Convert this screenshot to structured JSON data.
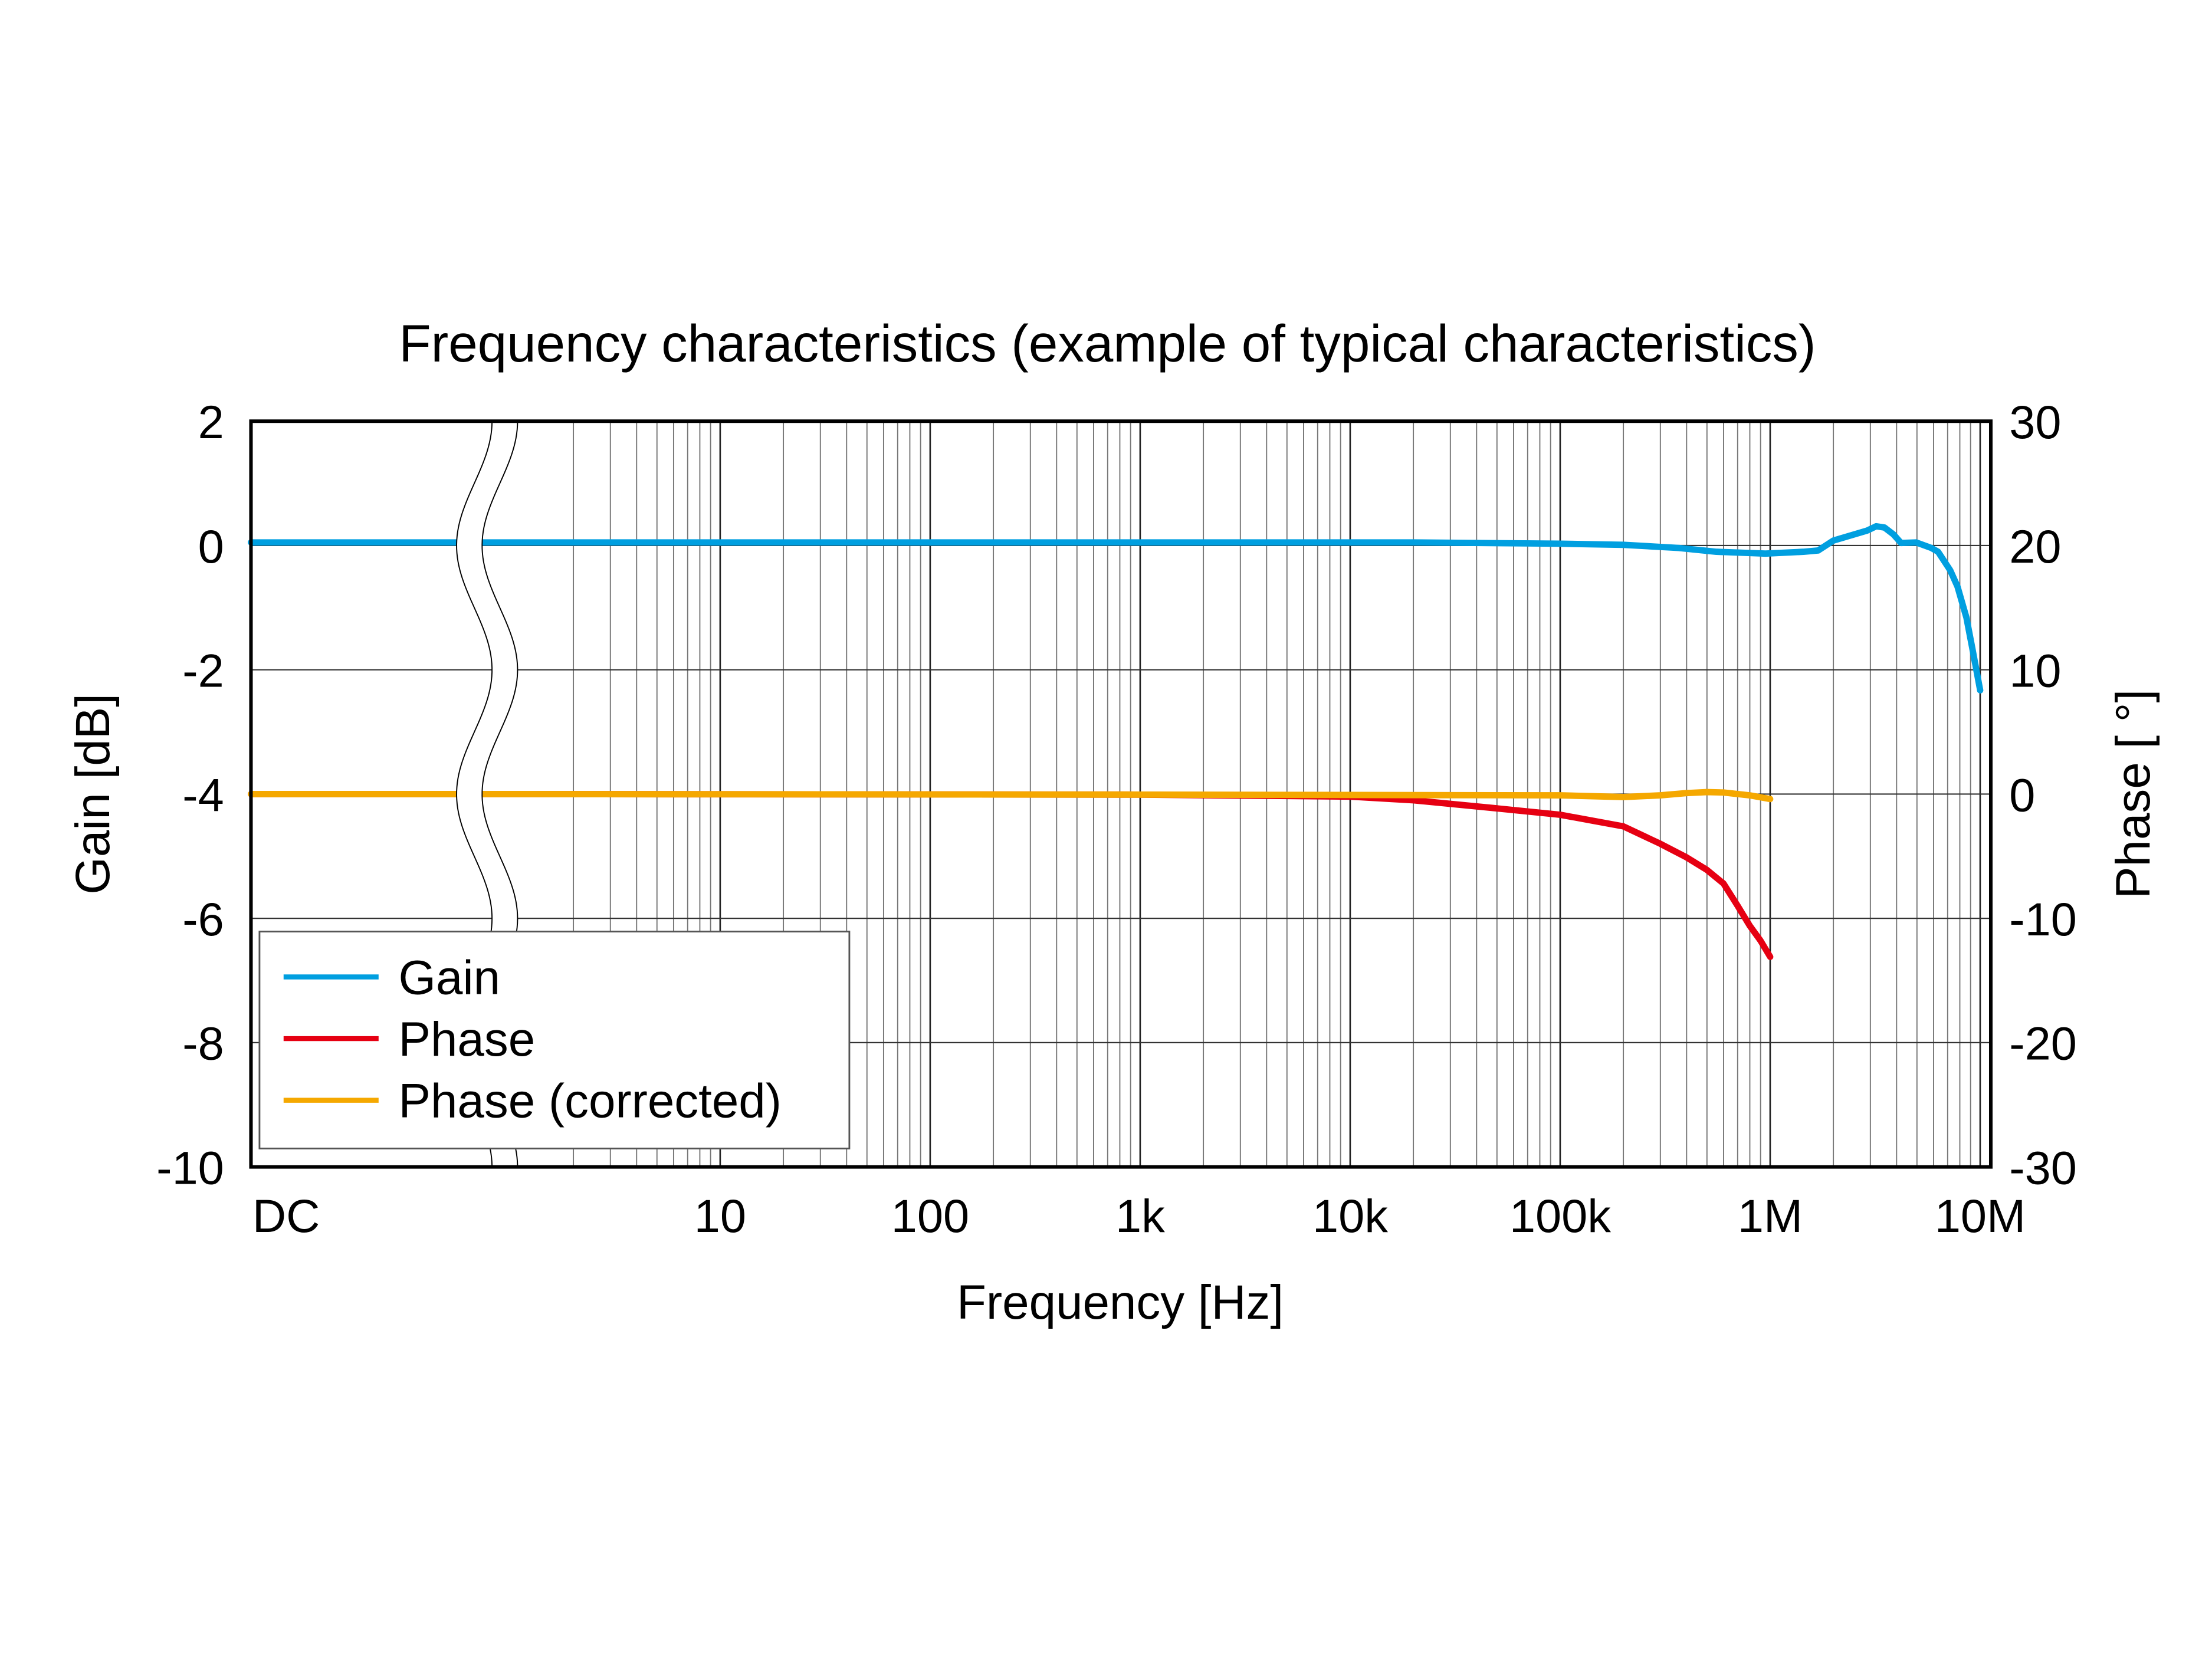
{
  "chart_data": {
    "type": "line",
    "title": "Frequency characteristics (example of typical characteristics)",
    "xlabel": "Frequency [Hz]",
    "ylabel_left": "Gain [dB]",
    "ylabel_right": "Phase [ °]",
    "x_scale": "log (broken axis with DC point at left)",
    "x_ticks": [
      {
        "label": "DC",
        "value": "DC"
      },
      {
        "label": "10",
        "value": 10
      },
      {
        "label": "100",
        "value": 100
      },
      {
        "label": "1k",
        "value": 1000
      },
      {
        "label": "10k",
        "value": 10000
      },
      {
        "label": "100k",
        "value": 100000
      },
      {
        "label": "1M",
        "value": 1000000
      },
      {
        "label": "10M",
        "value": 10000000
      }
    ],
    "ylim_left": [
      -10,
      2
    ],
    "ylim_right": [
      -30,
      30
    ],
    "y_ticks_left": [
      "2",
      "0",
      "-2",
      "-4",
      "-6",
      "-8",
      "-10"
    ],
    "y_ticks_right": [
      "30",
      "20",
      "10",
      "0",
      "-10",
      "-20",
      "-30"
    ],
    "grid": true,
    "legend_position": "bottom-left",
    "series": [
      {
        "name": "Gain",
        "axis": "left",
        "color": "#009fe0",
        "points": [
          [
            "DC",
            0.05
          ],
          [
            1,
            0.05
          ],
          [
            1000,
            0.05
          ],
          [
            20000,
            0.05
          ],
          [
            100000,
            0.03
          ],
          [
            200000,
            0.01
          ],
          [
            367000,
            -0.04
          ],
          [
            555000,
            -0.1
          ],
          [
            950000,
            -0.13
          ],
          [
            1440000,
            -0.1
          ],
          [
            1690000,
            -0.08
          ],
          [
            2000000,
            0.08
          ],
          [
            2900000,
            0.24
          ],
          [
            3200000,
            0.31
          ],
          [
            3500000,
            0.29
          ],
          [
            3860000,
            0.18
          ],
          [
            4200000,
            0.04
          ],
          [
            4950000,
            0.05
          ],
          [
            5850000,
            -0.04
          ],
          [
            6300000,
            -0.1
          ],
          [
            7200000,
            -0.4
          ],
          [
            7800000,
            -0.66
          ],
          [
            8600000,
            -1.16
          ],
          [
            9200000,
            -1.67
          ],
          [
            10000000,
            -2.33
          ]
        ]
      },
      {
        "name": "Phase",
        "axis": "right",
        "color": "#e60012",
        "points": [
          [
            "DC",
            0
          ],
          [
            1,
            0
          ],
          [
            1000,
            -0.05
          ],
          [
            10000,
            -0.2
          ],
          [
            20000,
            -0.5
          ],
          [
            50000,
            -1.15
          ],
          [
            100000,
            -1.67
          ],
          [
            200000,
            -2.6
          ],
          [
            300000,
            -4.0
          ],
          [
            400000,
            -5.1
          ],
          [
            500000,
            -6.1
          ],
          [
            600000,
            -7.2
          ],
          [
            700000,
            -9.0
          ],
          [
            800000,
            -10.6
          ],
          [
            900000,
            -11.8
          ],
          [
            1000000,
            -13.1
          ]
        ]
      },
      {
        "name": "Phase (corrected)",
        "axis": "right",
        "color": "#f5a800",
        "points": [
          [
            "DC",
            0
          ],
          [
            1,
            0
          ],
          [
            1000,
            -0.05
          ],
          [
            100000,
            -0.1
          ],
          [
            200000,
            -0.24
          ],
          [
            300000,
            -0.1
          ],
          [
            400000,
            0.08
          ],
          [
            500000,
            0.16
          ],
          [
            600000,
            0.12
          ],
          [
            800000,
            -0.1
          ],
          [
            1000000,
            -0.4
          ]
        ]
      }
    ]
  }
}
